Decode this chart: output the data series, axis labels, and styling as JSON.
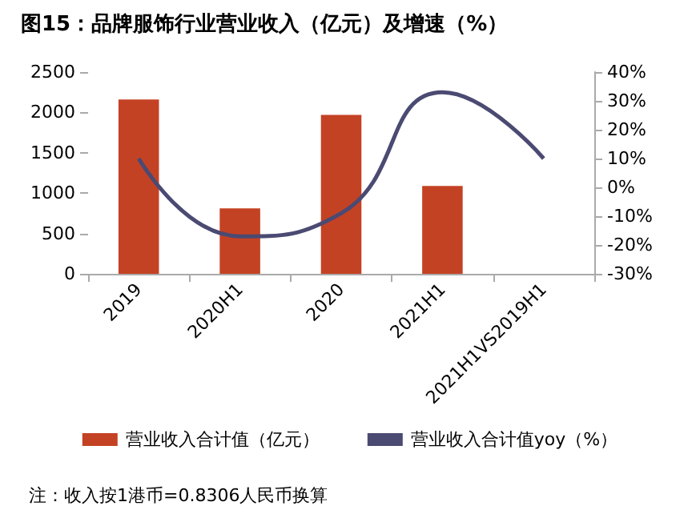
{
  "chart_data": {
    "type": "bar",
    "title": "图15：品牌服饰行业营业收入（亿元）及增速（%）",
    "categories": [
      "2019",
      "2020H1",
      "2020",
      "2021H1",
      "2021H1VS2019H1"
    ],
    "series": [
      {
        "name": "营业收入合计值（亿元）",
        "color": "#c44224",
        "values": [
          2160,
          810,
          1970,
          1090,
          null
        ]
      },
      {
        "name": "营业收入合计值yoy（%）",
        "type": "line",
        "axis": "y2",
        "color": "#4a4a72",
        "values": [
          10,
          -17,
          -9,
          33,
          10
        ]
      }
    ],
    "ylim": [
      0,
      2500
    ],
    "yticks": [
      0,
      500,
      1000,
      1500,
      2000,
      2500
    ],
    "y2lim": [
      -30,
      40
    ],
    "y2ticks": [
      {
        "value": -30,
        "label": "-30%"
      },
      {
        "value": -20,
        "label": "-20%"
      },
      {
        "value": -10,
        "label": "-10%"
      },
      {
        "value": 0,
        "label": "0%"
      },
      {
        "value": 10,
        "label": "10%"
      },
      {
        "value": 20,
        "label": "20%"
      },
      {
        "value": 30,
        "label": "30%"
      },
      {
        "value": 40,
        "label": "40%"
      }
    ],
    "annotations": [
      "注：收入按1港币=0.8306人民币换算"
    ],
    "legend": "bottom",
    "grid": false,
    "marker": "none"
  }
}
